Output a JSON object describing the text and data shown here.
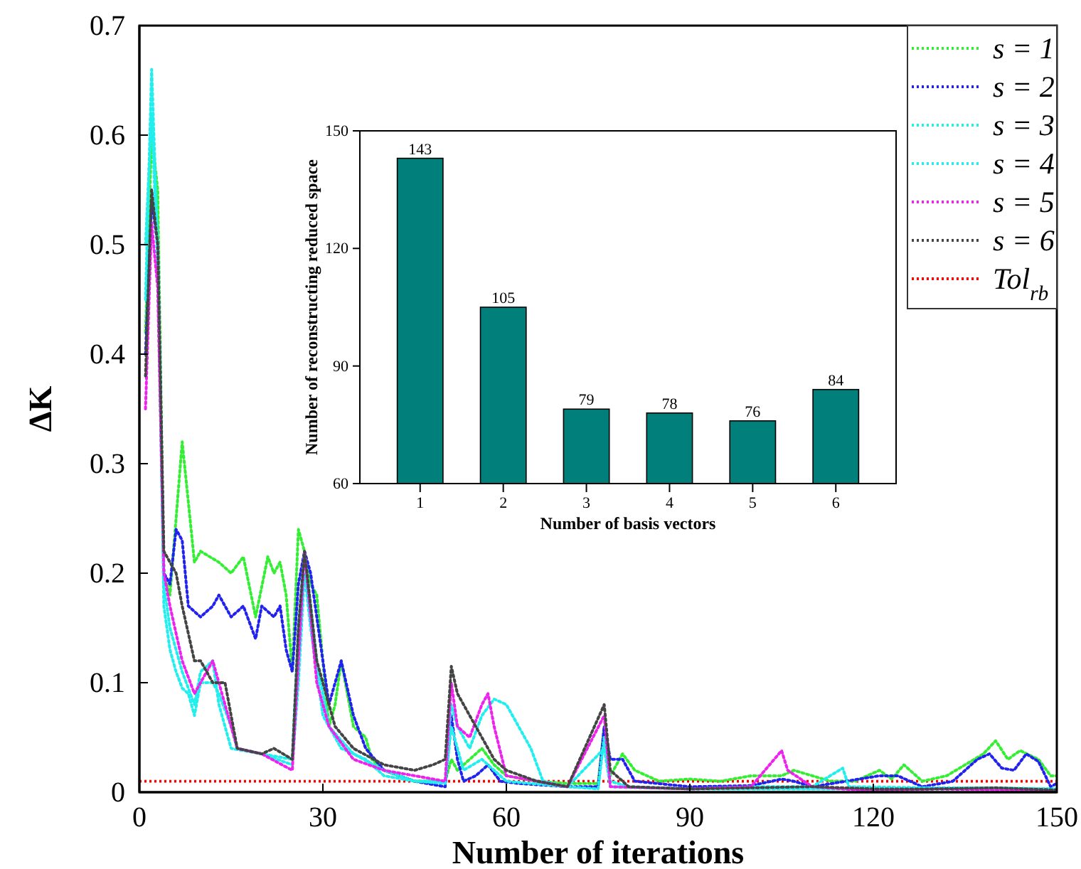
{
  "chart_data": [
    {
      "type": "line",
      "xlabel": "Number of iterations",
      "ylabel": "ΔK",
      "xlim": [
        0,
        150
      ],
      "xticks": [
        0,
        30,
        60,
        90,
        120,
        150
      ],
      "ylim": [
        0,
        0.7
      ],
      "yticks": [
        0.0,
        0.1,
        0.2,
        0.3,
        0.4,
        0.5,
        0.6,
        0.7
      ],
      "legend": "top right",
      "line_style": "dotted",
      "grid": false,
      "ref_lines": [
        {
          "axis": "y",
          "value": 0.01,
          "label": "Tol$_{rb}$",
          "color": "#ff0000",
          "line_style": "dotted"
        }
      ],
      "series": [
        {
          "name": "s = 1",
          "color": "#33ee33",
          "x": [
            1,
            2,
            3,
            4,
            5,
            7,
            9,
            10,
            13,
            15,
            17,
            19,
            21,
            22,
            23,
            24,
            25,
            26,
            27,
            28,
            29,
            30,
            31,
            32,
            33,
            34,
            35,
            37,
            38,
            40,
            45,
            50,
            51,
            52,
            54,
            56,
            58,
            60,
            65,
            70,
            75,
            76,
            77,
            79,
            81,
            85,
            90,
            95,
            100,
            105,
            107,
            110,
            113,
            117,
            121,
            123,
            125,
            128,
            132,
            135,
            138,
            140,
            142,
            144,
            147,
            149,
            150
          ],
          "values": [
            0.42,
            0.6,
            0.55,
            0.2,
            0.18,
            0.32,
            0.21,
            0.22,
            0.21,
            0.2,
            0.215,
            0.16,
            0.215,
            0.2,
            0.21,
            0.18,
            0.11,
            0.24,
            0.22,
            0.19,
            0.18,
            0.12,
            0.06,
            0.08,
            0.12,
            0.09,
            0.06,
            0.05,
            0.03,
            0.02,
            0.01,
            0.01,
            0.03,
            0.02,
            0.03,
            0.04,
            0.025,
            0.015,
            0.01,
            0.008,
            0.008,
            0.06,
            0.015,
            0.035,
            0.02,
            0.01,
            0.012,
            0.01,
            0.015,
            0.015,
            0.02,
            0.015,
            0.01,
            0.01,
            0.02,
            0.012,
            0.025,
            0.01,
            0.015,
            0.025,
            0.035,
            0.047,
            0.03,
            0.038,
            0.03,
            0.015,
            0.015
          ]
        },
        {
          "name": "s = 2",
          "color": "#2222ee",
          "x": [
            1,
            2,
            3,
            4,
            5,
            6,
            7,
            8,
            10,
            12,
            13,
            15,
            17,
            19,
            20,
            22,
            23,
            24,
            25,
            26,
            27,
            28,
            30,
            31,
            33,
            35,
            37,
            40,
            45,
            50,
            51,
            52,
            53,
            55,
            57,
            59,
            62,
            70,
            75,
            76,
            77,
            79,
            81,
            90,
            100,
            105,
            107,
            110,
            121,
            124,
            128,
            133,
            137,
            139,
            141,
            143,
            145,
            147,
            149,
            150
          ],
          "values": [
            0.4,
            0.54,
            0.5,
            0.2,
            0.19,
            0.24,
            0.23,
            0.17,
            0.16,
            0.17,
            0.18,
            0.16,
            0.17,
            0.14,
            0.17,
            0.16,
            0.17,
            0.13,
            0.11,
            0.19,
            0.22,
            0.2,
            0.12,
            0.08,
            0.12,
            0.07,
            0.04,
            0.02,
            0.01,
            0.005,
            0.07,
            0.03,
            0.01,
            0.015,
            0.025,
            0.01,
            0.008,
            0.005,
            0.005,
            0.06,
            0.03,
            0.03,
            0.01,
            0.005,
            0.006,
            0.012,
            0.01,
            0.005,
            0.015,
            0.015,
            0.005,
            0.01,
            0.03,
            0.035,
            0.022,
            0.02,
            0.035,
            0.028,
            0.005,
            0.008
          ]
        },
        {
          "name": "s = 3",
          "color": "#22eeee",
          "x": [
            1,
            2,
            3,
            4,
            5,
            6,
            7,
            8,
            9,
            10,
            12,
            13,
            15,
            16,
            20,
            25,
            26,
            27,
            28,
            30,
            33,
            37,
            40,
            45,
            50,
            51,
            52,
            54,
            56,
            58,
            60,
            62,
            64,
            66,
            70,
            75,
            76,
            77,
            80,
            90,
            100,
            110,
            115,
            116,
            130,
            140,
            150
          ],
          "values": [
            0.45,
            0.66,
            0.5,
            0.17,
            0.13,
            0.11,
            0.095,
            0.09,
            0.07,
            0.1,
            0.1,
            0.09,
            0.06,
            0.04,
            0.035,
            0.025,
            0.1,
            0.2,
            0.15,
            0.07,
            0.04,
            0.03,
            0.015,
            0.01,
            0.01,
            0.08,
            0.06,
            0.04,
            0.07,
            0.085,
            0.08,
            0.06,
            0.04,
            0.01,
            0.005,
            0.003,
            0.05,
            0.01,
            0.005,
            0.003,
            0.005,
            0.005,
            0.022,
            0.005,
            0.004,
            0.004,
            0.003
          ]
        },
        {
          "name": "s = 4",
          "color": "#22eeee",
          "x": [
            1,
            2,
            3,
            4,
            5,
            7,
            9,
            10,
            12,
            13,
            15,
            20,
            25,
            26,
            27,
            29,
            31,
            35,
            40,
            45,
            50,
            51,
            53,
            56,
            58,
            60,
            70,
            76,
            77,
            90,
            100,
            110,
            150
          ],
          "values": [
            0.5,
            0.62,
            0.48,
            0.19,
            0.15,
            0.11,
            0.08,
            0.11,
            0.12,
            0.08,
            0.04,
            0.035,
            0.03,
            0.15,
            0.22,
            0.12,
            0.06,
            0.035,
            0.02,
            0.01,
            0.008,
            0.06,
            0.02,
            0.03,
            0.02,
            0.01,
            0.005,
            0.04,
            0.005,
            0.003,
            0.003,
            0.003,
            0.003
          ]
        },
        {
          "name": "s = 5",
          "color": "#ee22ee",
          "x": [
            1,
            2,
            3,
            4,
            5,
            7,
            9,
            10,
            12,
            14,
            16,
            20,
            25,
            26,
            27,
            29,
            31,
            35,
            40,
            50,
            51,
            52,
            54,
            56,
            57,
            58,
            60,
            70,
            76,
            77,
            90,
            100,
            105,
            106,
            110,
            120,
            130,
            140,
            150
          ],
          "values": [
            0.35,
            0.52,
            0.46,
            0.2,
            0.17,
            0.12,
            0.09,
            0.1,
            0.12,
            0.08,
            0.04,
            0.035,
            0.02,
            0.12,
            0.22,
            0.1,
            0.06,
            0.03,
            0.02,
            0.01,
            0.1,
            0.06,
            0.05,
            0.08,
            0.09,
            0.06,
            0.015,
            0.005,
            0.07,
            0.005,
            0.003,
            0.005,
            0.038,
            0.02,
            0.005,
            0.001,
            0.003,
            0.002,
            0.001
          ]
        },
        {
          "name": "s = 6",
          "color": "#444444",
          "x": [
            1,
            2,
            3,
            4,
            6,
            7,
            9,
            10,
            12,
            14,
            16,
            20,
            22,
            25,
            26,
            27,
            29,
            32,
            35,
            40,
            45,
            48,
            50,
            51,
            52,
            54,
            56,
            58,
            60,
            65,
            70,
            76,
            77,
            80,
            90,
            100,
            110,
            120,
            130,
            140,
            150
          ],
          "values": [
            0.38,
            0.55,
            0.5,
            0.22,
            0.2,
            0.17,
            0.12,
            0.12,
            0.1,
            0.1,
            0.04,
            0.035,
            0.04,
            0.03,
            0.15,
            0.22,
            0.12,
            0.06,
            0.04,
            0.025,
            0.02,
            0.025,
            0.03,
            0.115,
            0.09,
            0.07,
            0.05,
            0.03,
            0.02,
            0.01,
            0.005,
            0.08,
            0.02,
            0.005,
            0.003,
            0.004,
            0.005,
            0.003,
            0.003,
            0.004,
            0.002
          ]
        }
      ]
    },
    {
      "type": "bar",
      "xlabel": "Number of basis vectors",
      "ylabel": "Number of reconstructing reduced space",
      "categories": [
        "1",
        "2",
        "3",
        "4",
        "5",
        "6"
      ],
      "values": [
        143,
        105,
        79,
        78,
        76,
        84
      ],
      "color": "#007f7b",
      "ylim": [
        60,
        150
      ],
      "yticks": [
        60,
        90,
        120,
        150
      ],
      "data_labels": true
    }
  ]
}
